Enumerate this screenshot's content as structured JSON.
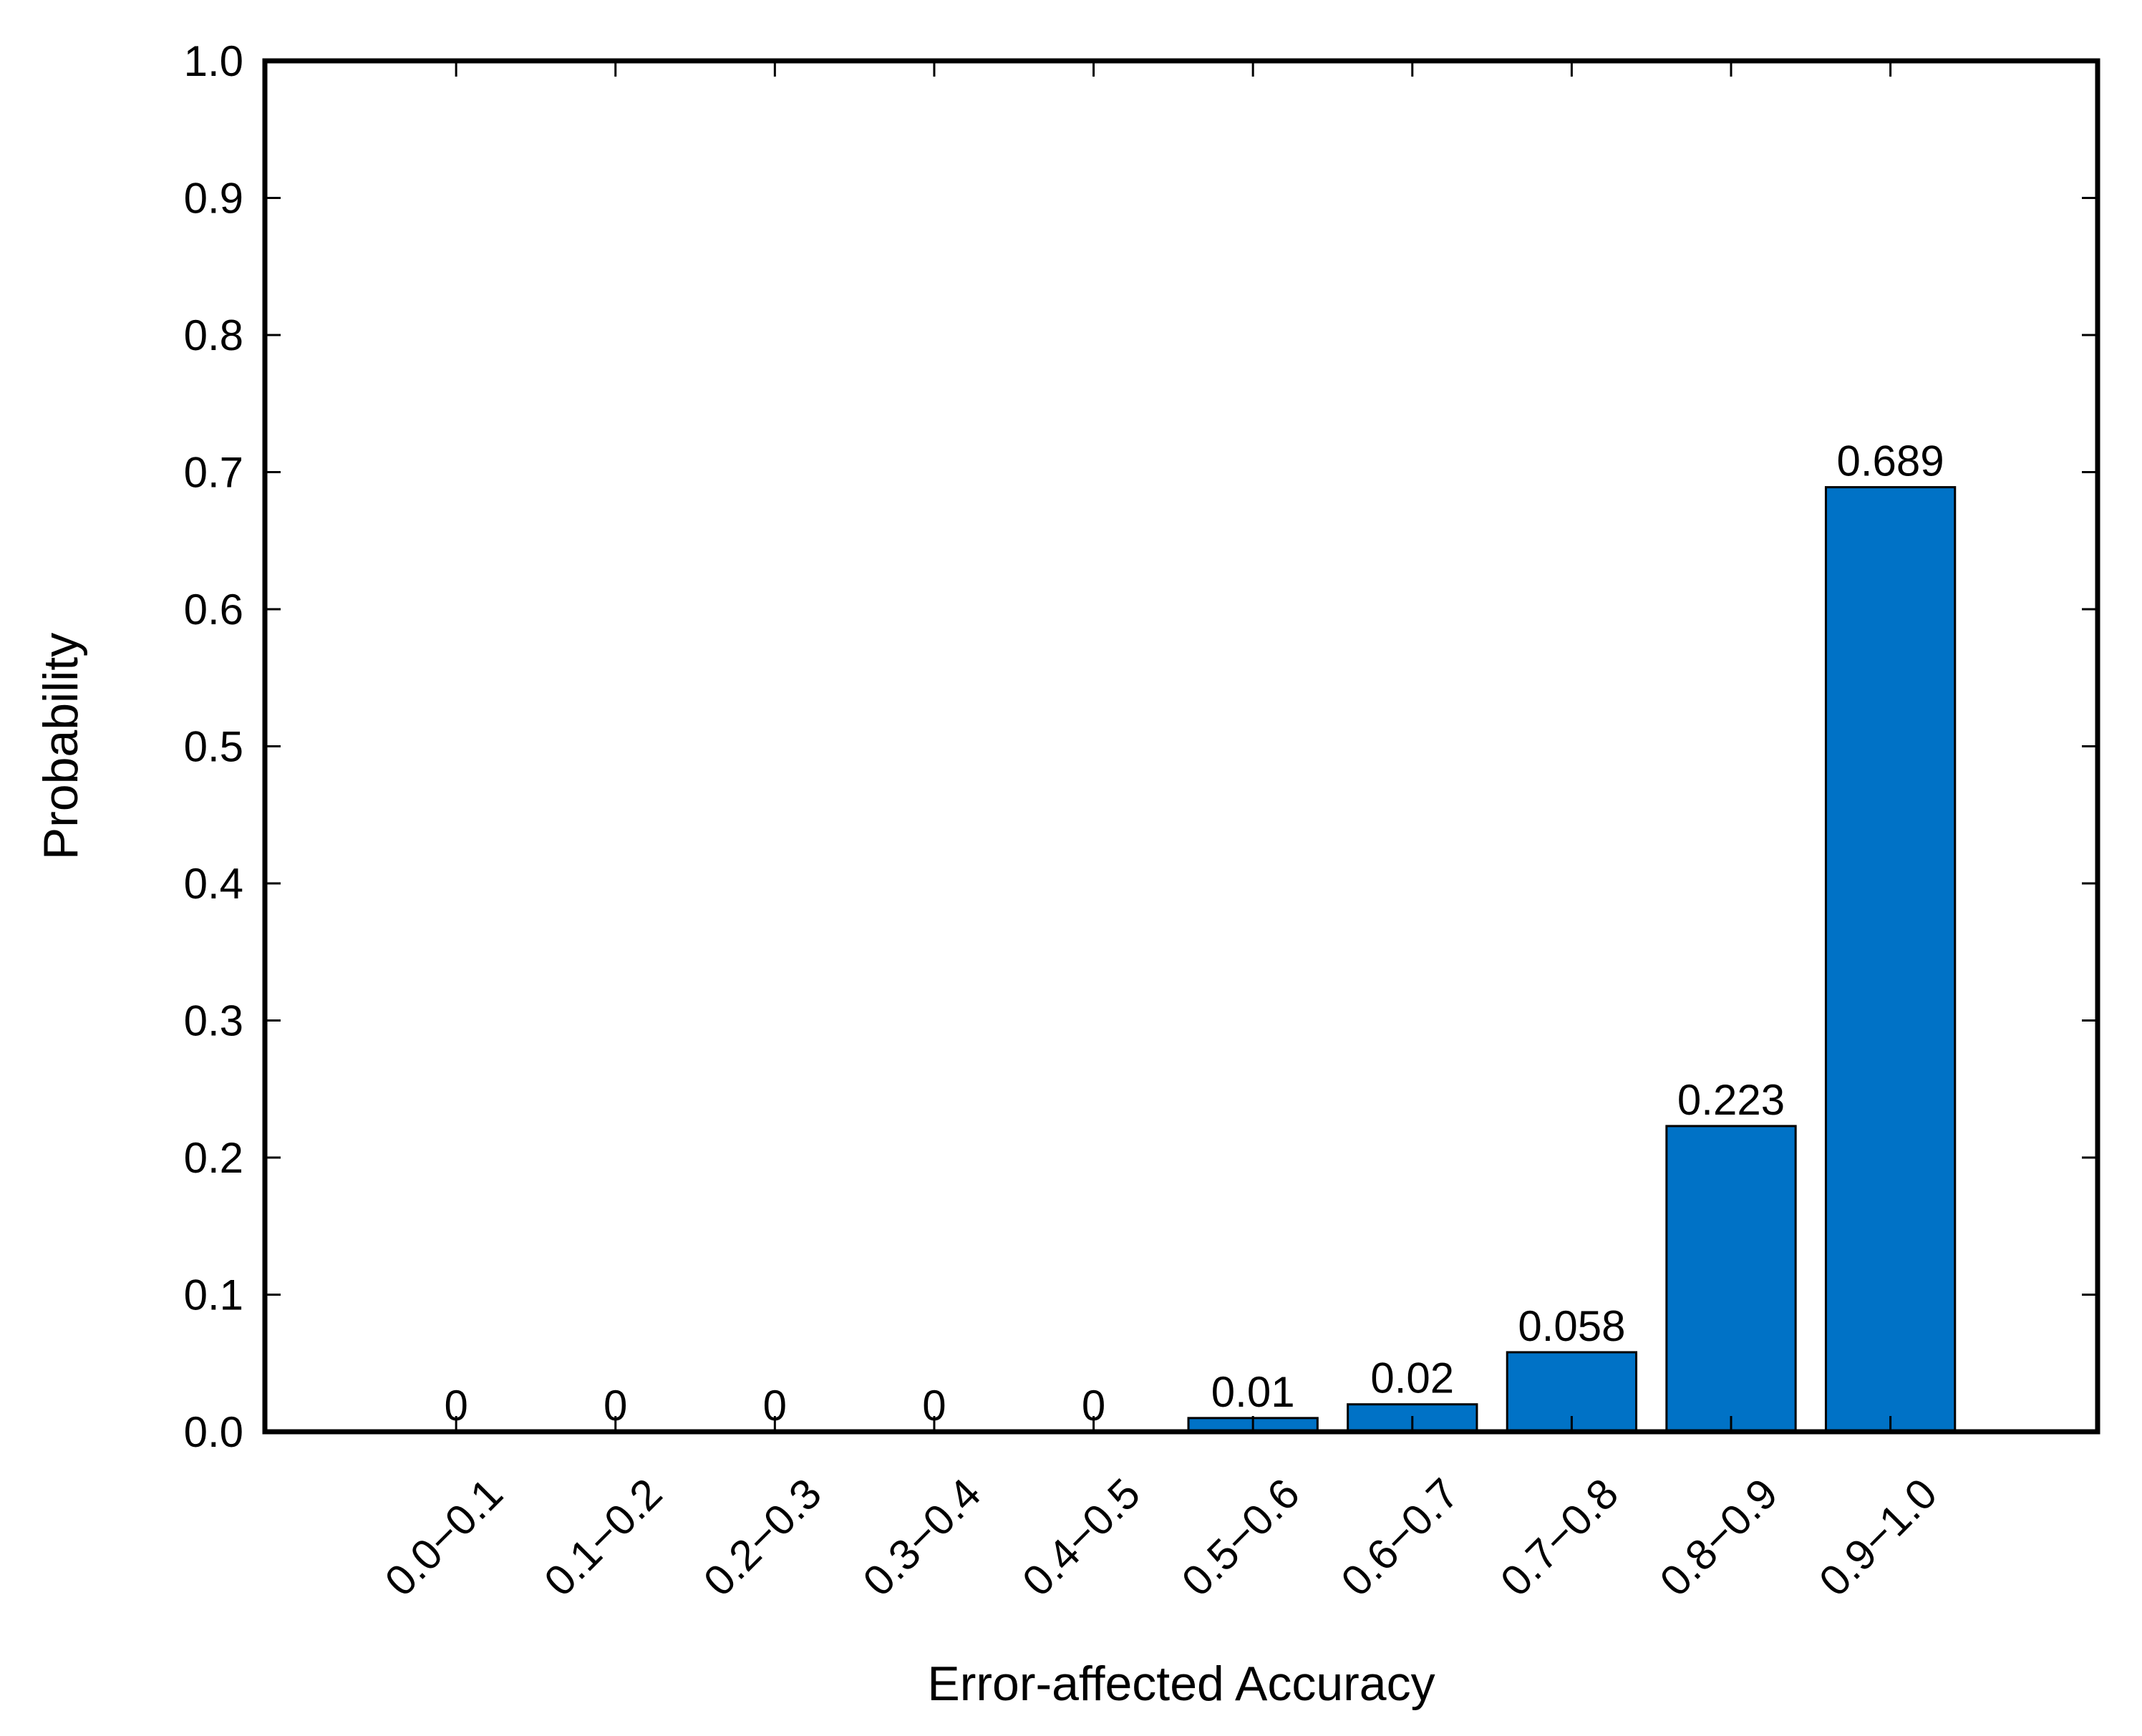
{
  "chart_data": {
    "type": "bar",
    "title": "",
    "xlabel": "Error-affected Accuracy",
    "ylabel": "Probability",
    "categories": [
      "0.0−0.1",
      "0.1−0.2",
      "0.2−0.3",
      "0.3−0.4",
      "0.4−0.5",
      "0.5−0.6",
      "0.6−0.7",
      "0.7−0.8",
      "0.8−0.9",
      "0.9−1.0"
    ],
    "values": [
      0,
      0,
      0,
      0,
      0,
      0.01,
      0.02,
      0.058,
      0.223,
      0.689
    ],
    "value_labels": [
      "0",
      "0",
      "0",
      "0",
      "0",
      "0.01",
      "0.02",
      "0.058",
      "0.223",
      "0.689"
    ],
    "ylim": [
      0,
      1.0
    ],
    "yticks": [
      "0.0",
      "0.1",
      "0.2",
      "0.3",
      "0.4",
      "0.5",
      "0.6",
      "0.7",
      "0.8",
      "0.9",
      "1.0"
    ],
    "grid": false,
    "bar_color": "#0072C6"
  }
}
